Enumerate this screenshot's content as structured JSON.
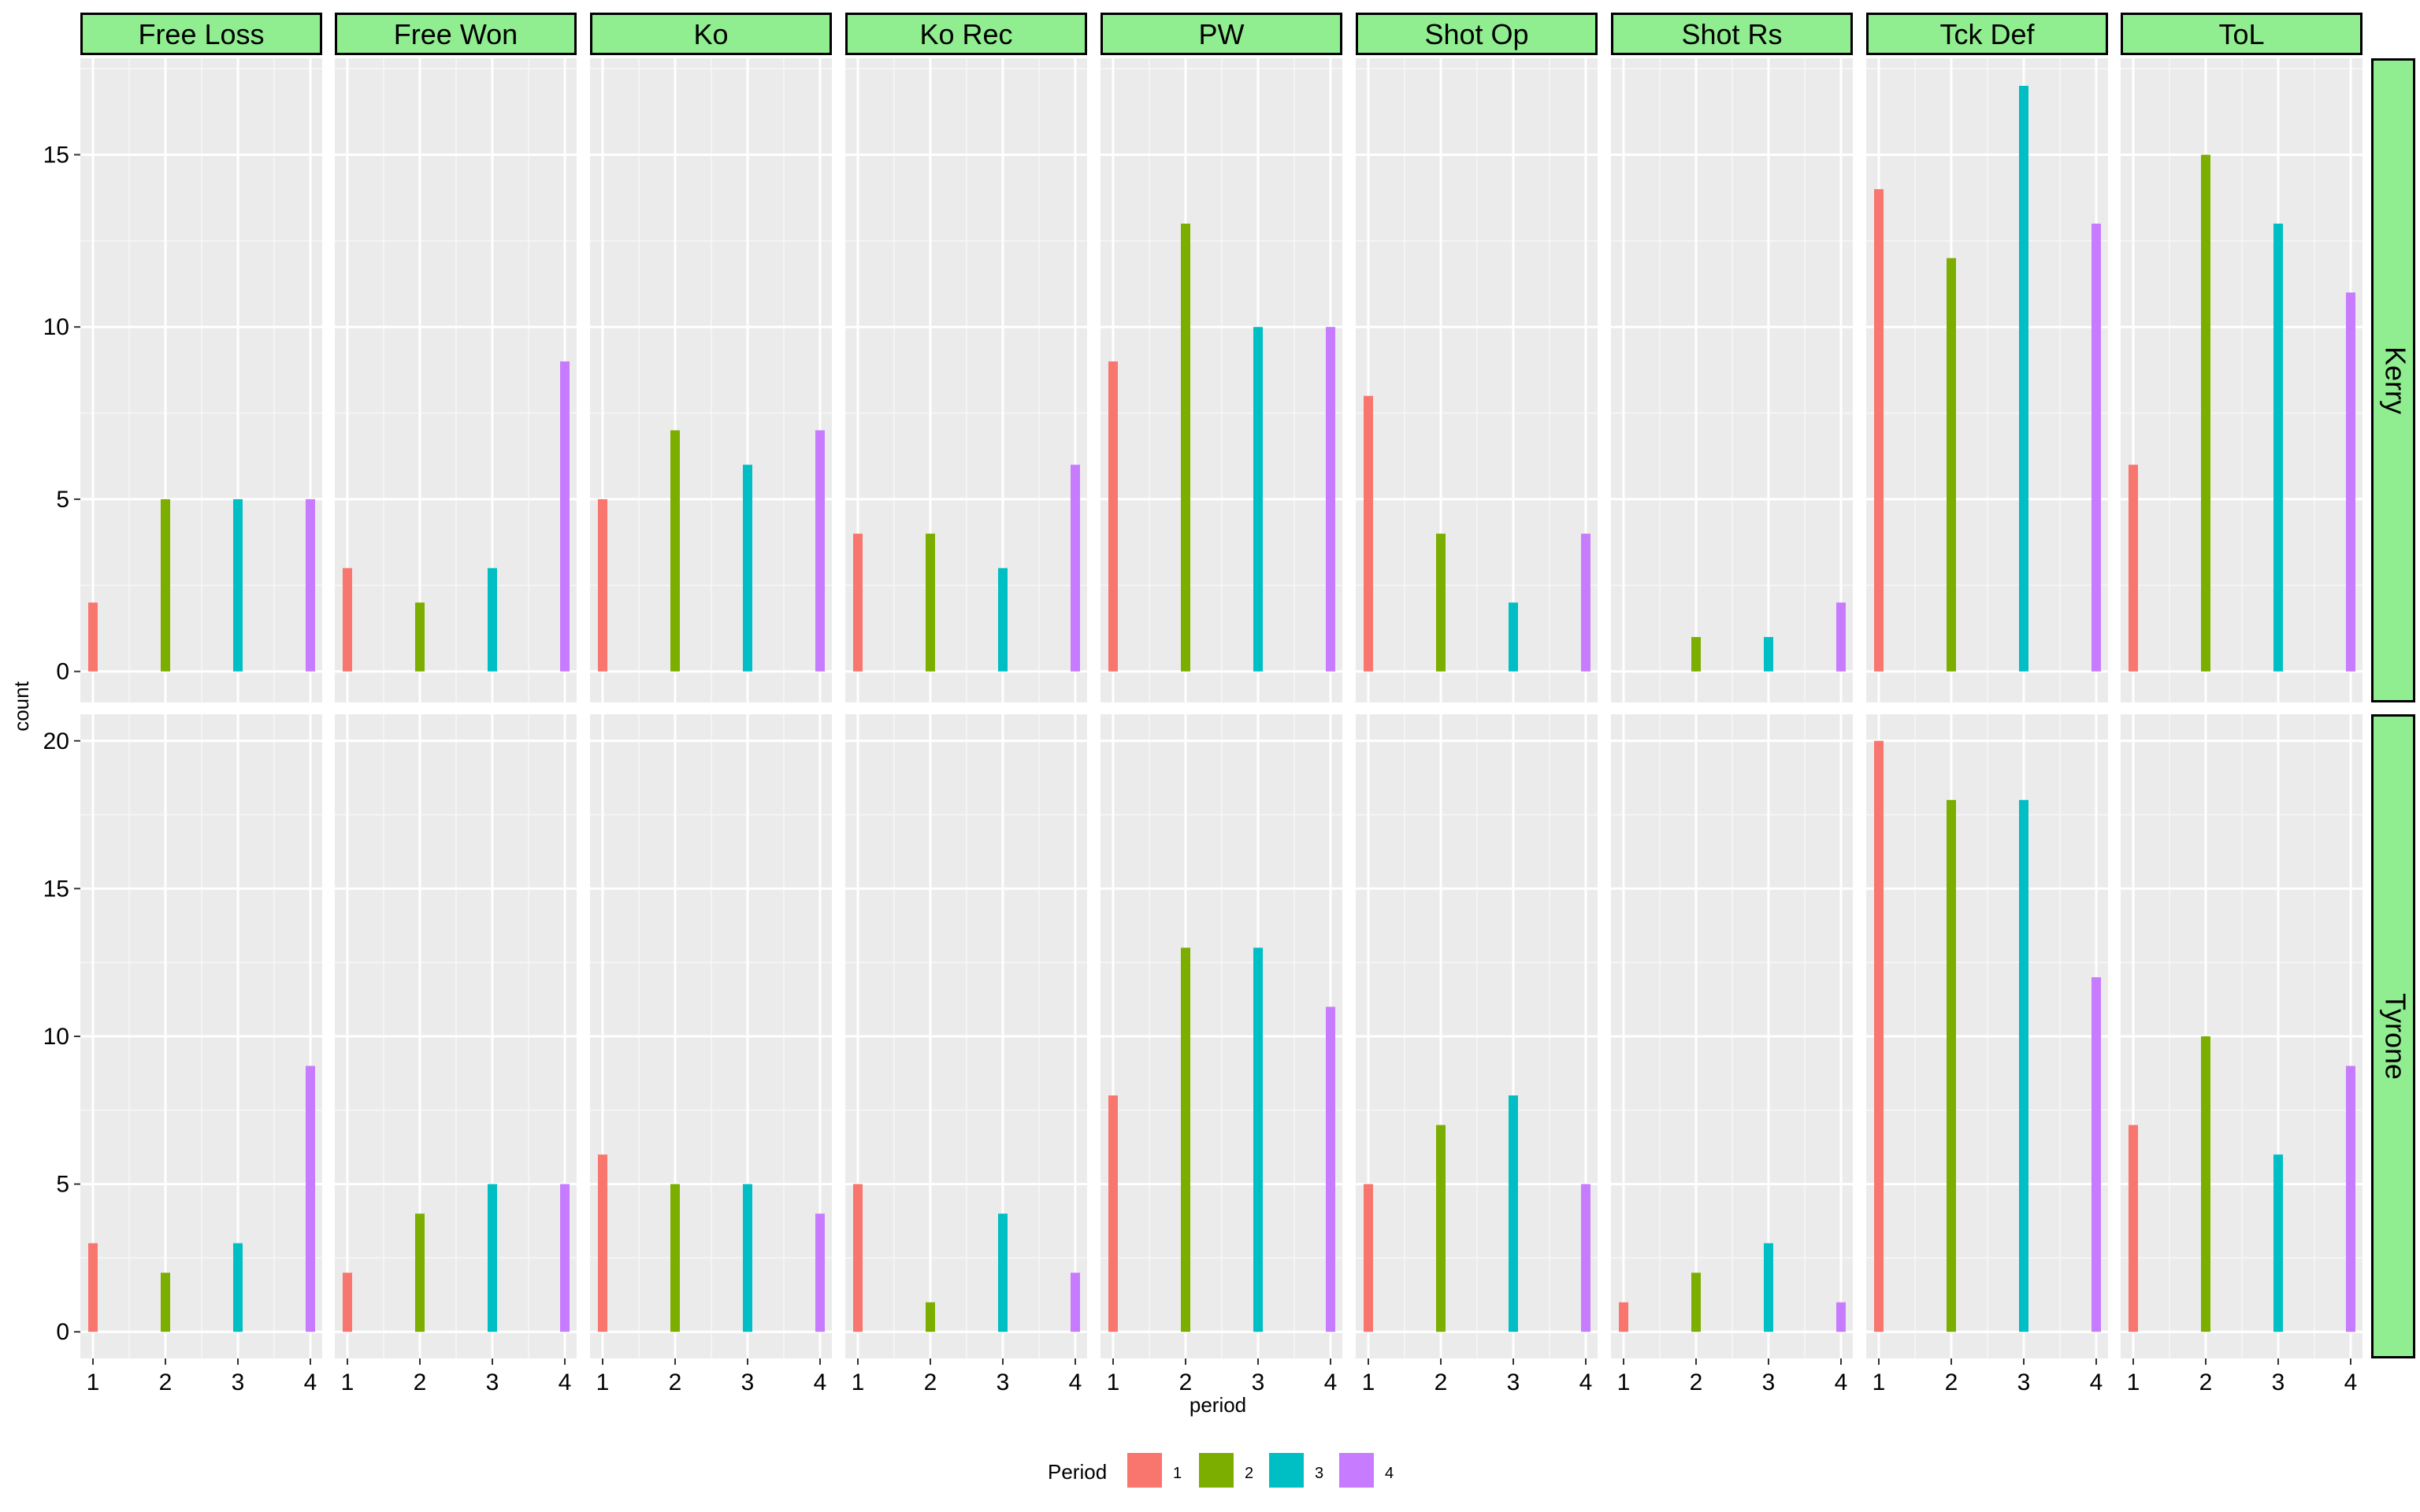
{
  "chart_data": {
    "type": "bar",
    "xlabel": "period",
    "ylabel": "count",
    "grid": true,
    "legend_position": "bottom",
    "legend": {
      "title": "Period",
      "items": [
        "1",
        "2",
        "3",
        "4"
      ]
    },
    "x_ticks": [
      "1",
      "2",
      "3",
      "4"
    ],
    "facet_columns": [
      "Free Loss",
      "Free Won",
      "Ko",
      "Ko Rec",
      "PW",
      "Shot Op",
      "Shot Rs",
      "Tck Def",
      "ToL"
    ],
    "facet_rows": [
      {
        "label": "Kerry",
        "ylim": [
          -0.9,
          17.8
        ],
        "y_ticks": [
          0,
          5,
          10,
          15
        ]
      },
      {
        "label": "Tyrone",
        "ylim": [
          -0.9,
          20.9
        ],
        "y_ticks": [
          0,
          5,
          10,
          15,
          20
        ]
      }
    ],
    "series_colors": {
      "1": "#F8766D",
      "2": "#7CAE00",
      "3": "#00BFC4",
      "4": "#C77CFF"
    },
    "panels": [
      {
        "row": "Kerry",
        "column": "Free Loss",
        "x": [
          1,
          2,
          3,
          4
        ],
        "values": [
          2,
          5,
          5,
          5
        ]
      },
      {
        "row": "Kerry",
        "column": "Free Won",
        "x": [
          1,
          2,
          3,
          4
        ],
        "values": [
          3,
          2,
          3,
          9
        ]
      },
      {
        "row": "Kerry",
        "column": "Ko",
        "x": [
          1,
          2,
          3,
          4
        ],
        "values": [
          5,
          7,
          6,
          7
        ]
      },
      {
        "row": "Kerry",
        "column": "Ko Rec",
        "x": [
          1,
          2,
          3,
          4
        ],
        "values": [
          4,
          4,
          3,
          6
        ]
      },
      {
        "row": "Kerry",
        "column": "PW",
        "x": [
          1,
          2,
          3,
          4
        ],
        "values": [
          9,
          13,
          10,
          10
        ]
      },
      {
        "row": "Kerry",
        "column": "Shot Op",
        "x": [
          1,
          2,
          3,
          4
        ],
        "values": [
          8,
          4,
          2,
          4
        ]
      },
      {
        "row": "Kerry",
        "column": "Shot Rs",
        "x": [
          2,
          3,
          4
        ],
        "values": [
          1,
          1,
          2
        ]
      },
      {
        "row": "Kerry",
        "column": "Tck Def",
        "x": [
          1,
          2,
          3,
          4
        ],
        "values": [
          14,
          12,
          17,
          13
        ]
      },
      {
        "row": "Kerry",
        "column": "ToL",
        "x": [
          1,
          2,
          3,
          4
        ],
        "values": [
          6,
          15,
          13,
          11
        ]
      },
      {
        "row": "Tyrone",
        "column": "Free Loss",
        "x": [
          1,
          2,
          3,
          4
        ],
        "values": [
          3,
          2,
          3,
          9
        ]
      },
      {
        "row": "Tyrone",
        "column": "Free Won",
        "x": [
          1,
          2,
          3,
          4
        ],
        "values": [
          2,
          4,
          5,
          5
        ]
      },
      {
        "row": "Tyrone",
        "column": "Ko",
        "x": [
          1,
          2,
          3,
          4
        ],
        "values": [
          6,
          5,
          5,
          4
        ]
      },
      {
        "row": "Tyrone",
        "column": "Ko Rec",
        "x": [
          1,
          2,
          3,
          4
        ],
        "values": [
          5,
          1,
          4,
          2
        ]
      },
      {
        "row": "Tyrone",
        "column": "PW",
        "x": [
          1,
          2,
          3,
          4
        ],
        "values": [
          8,
          13,
          13,
          11
        ]
      },
      {
        "row": "Tyrone",
        "column": "Shot Op",
        "x": [
          1,
          2,
          3,
          4
        ],
        "values": [
          5,
          7,
          8,
          5
        ]
      },
      {
        "row": "Tyrone",
        "column": "Shot Rs",
        "x": [
          1,
          2,
          3,
          4
        ],
        "values": [
          1,
          2,
          3,
          1
        ]
      },
      {
        "row": "Tyrone",
        "column": "Tck Def",
        "x": [
          1,
          2,
          3,
          4
        ],
        "values": [
          20,
          18,
          18,
          12
        ]
      },
      {
        "row": "Tyrone",
        "column": "ToL",
        "x": [
          1,
          2,
          3,
          4
        ],
        "values": [
          7,
          10,
          6,
          9
        ]
      }
    ]
  }
}
